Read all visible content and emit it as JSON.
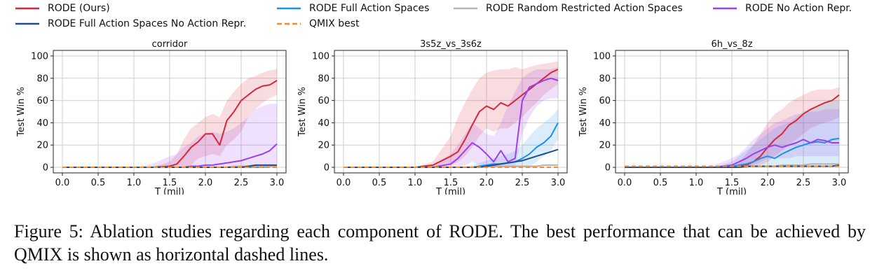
{
  "legend": [
    {
      "label": "RODE (Ours)",
      "color": "#d62739",
      "dash": false
    },
    {
      "label": "RODE Full Action Spaces",
      "color": "#1e90e8",
      "dash": false
    },
    {
      "label": "RODE Random Restricted Action Spaces",
      "color": "#b4b4b4",
      "dash": false
    },
    {
      "label": "RODE No Action Repr.",
      "color": "#9b3ff0",
      "dash": false
    },
    {
      "label": "RODE Full Action Spaces No Action Repr.",
      "color": "#1a4f91",
      "dash": false
    },
    {
      "label": "QMIX best",
      "color": "#ff8c1a",
      "dash": true
    }
  ],
  "chart_data": [
    {
      "type": "line",
      "title": "corridor",
      "xlabel": "T (mil)",
      "ylabel": "Test Win %",
      "xlim": [
        0,
        3.0
      ],
      "ylim": [
        -5,
        105
      ],
      "xticks": [
        "0.0",
        "0.5",
        "1.0",
        "1.5",
        "2.0",
        "2.5",
        "3.0"
      ],
      "yticks": [
        "0",
        "20",
        "40",
        "60",
        "80",
        "100"
      ],
      "grid": true,
      "x": [
        0,
        0.25,
        0.5,
        0.75,
        1.0,
        1.25,
        1.5,
        1.6,
        1.7,
        1.8,
        1.9,
        2.0,
        2.1,
        2.2,
        2.3,
        2.4,
        2.5,
        2.6,
        2.7,
        2.8,
        2.9,
        3.0
      ],
      "series": [
        {
          "name": "RODE (Ours)",
          "values": [
            0,
            0,
            0,
            0,
            0,
            0,
            1,
            3,
            10,
            18,
            23,
            30,
            30,
            20,
            42,
            50,
            60,
            65,
            70,
            73,
            74,
            78
          ],
          "lower": [
            0,
            0,
            0,
            0,
            0,
            0,
            0,
            0,
            0,
            2,
            8,
            10,
            12,
            10,
            20,
            25,
            32,
            45,
            52,
            58,
            62,
            65
          ],
          "upper": [
            0,
            0,
            0,
            0,
            0,
            0,
            5,
            12,
            25,
            35,
            40,
            45,
            48,
            45,
            60,
            68,
            75,
            80,
            82,
            85,
            87,
            88
          ]
        },
        {
          "name": "RODE Full Action Spaces",
          "values": [
            0,
            0,
            0,
            0,
            0,
            0,
            0,
            0,
            0,
            0,
            0,
            0,
            0,
            0,
            0,
            0,
            0,
            0,
            0,
            0,
            1,
            1
          ],
          "lower": null,
          "upper": null
        },
        {
          "name": "RODE Random Restricted Action Spaces",
          "values": [
            0,
            0,
            0,
            0,
            0,
            0,
            0,
            0,
            0,
            0,
            0,
            0,
            0,
            0,
            0,
            1,
            1,
            1,
            1,
            1,
            1,
            1
          ],
          "lower": null,
          "upper": null
        },
        {
          "name": "RODE No Action Repr.",
          "values": [
            0,
            0,
            0,
            0,
            0,
            0,
            0,
            0,
            0,
            1,
            1,
            2,
            2,
            3,
            4,
            5,
            6,
            8,
            10,
            12,
            15,
            21
          ],
          "lower": [
            0,
            0,
            0,
            0,
            0,
            0,
            0,
            0,
            0,
            0,
            0,
            0,
            0,
            0,
            0,
            0,
            0,
            0,
            0,
            0,
            0,
            0
          ],
          "upper": [
            0,
            0,
            0,
            0,
            0,
            3,
            10,
            12,
            18,
            22,
            28,
            30,
            32,
            30,
            32,
            35,
            40,
            45,
            52,
            55,
            57,
            57
          ]
        },
        {
          "name": "RODE Full Action Spaces No Action Repr.",
          "values": [
            0,
            0,
            0,
            0,
            0,
            0,
            0,
            0,
            0,
            0,
            0,
            0,
            0,
            0,
            0,
            0,
            0,
            1,
            2,
            2,
            2,
            2
          ],
          "lower": null,
          "upper": null
        },
        {
          "name": "QMIX best",
          "values": [
            0,
            0,
            0,
            0,
            0,
            0,
            0,
            0,
            0,
            0,
            0,
            0,
            0,
            0,
            0,
            0,
            0,
            0,
            0,
            0,
            0,
            0
          ],
          "lower": null,
          "upper": null
        }
      ]
    },
    {
      "type": "line",
      "title": "3s5z_vs_3s6z",
      "xlabel": "T (mil)",
      "ylabel": "Test Win %",
      "xlim": [
        0,
        3.0
      ],
      "ylim": [
        -5,
        105
      ],
      "xticks": [
        "0.0",
        "0.5",
        "1.0",
        "1.5",
        "2.0",
        "2.5",
        "3.0"
      ],
      "yticks": [
        "0",
        "20",
        "40",
        "60",
        "80",
        "100"
      ],
      "grid": true,
      "x": [
        0,
        0.25,
        0.5,
        0.75,
        1.0,
        1.25,
        1.5,
        1.6,
        1.7,
        1.8,
        1.9,
        2.0,
        2.1,
        2.2,
        2.3,
        2.4,
        2.5,
        2.6,
        2.7,
        2.8,
        2.9,
        3.0
      ],
      "series": [
        {
          "name": "RODE (Ours)",
          "values": [
            0,
            0,
            0,
            0,
            0,
            2,
            10,
            14,
            25,
            38,
            50,
            55,
            52,
            58,
            55,
            60,
            65,
            70,
            75,
            80,
            85,
            88
          ],
          "lower": [
            0,
            0,
            0,
            0,
            0,
            0,
            2,
            5,
            10,
            18,
            28,
            35,
            32,
            35,
            35,
            40,
            45,
            52,
            58,
            65,
            70,
            75
          ],
          "upper": [
            0,
            0,
            0,
            0,
            0,
            5,
            28,
            45,
            58,
            70,
            80,
            85,
            87,
            88,
            88,
            90,
            88,
            90,
            92,
            93,
            94,
            95
          ]
        },
        {
          "name": "RODE Full Action Spaces",
          "values": [
            0,
            0,
            0,
            0,
            0,
            0,
            0,
            0,
            0,
            0,
            1,
            2,
            3,
            3,
            4,
            5,
            8,
            12,
            18,
            22,
            28,
            40
          ],
          "lower": [
            0,
            0,
            0,
            0,
            0,
            0,
            0,
            0,
            0,
            0,
            0,
            0,
            0,
            0,
            0,
            0,
            0,
            0,
            5,
            10,
            15,
            25
          ],
          "upper": [
            0,
            0,
            0,
            0,
            0,
            0,
            0,
            0,
            1,
            2,
            4,
            6,
            8,
            10,
            12,
            15,
            20,
            28,
            35,
            40,
            45,
            52
          ]
        },
        {
          "name": "RODE Random Restricted Action Spaces",
          "values": [
            0,
            0,
            0,
            0,
            0,
            0,
            0,
            0,
            0,
            0,
            0,
            1,
            1,
            1,
            1,
            1,
            1,
            1,
            1,
            2,
            2,
            2
          ],
          "lower": null,
          "upper": null
        },
        {
          "name": "RODE No Action Repr.",
          "values": [
            0,
            0,
            0,
            0,
            0,
            0,
            3,
            8,
            15,
            22,
            18,
            12,
            5,
            15,
            5,
            8,
            60,
            72,
            75,
            78,
            80,
            78
          ],
          "lower": [
            0,
            0,
            0,
            0,
            0,
            0,
            0,
            0,
            2,
            5,
            2,
            0,
            0,
            0,
            0,
            0,
            30,
            45,
            55,
            60,
            62,
            62
          ],
          "upper": [
            0,
            0,
            0,
            0,
            0,
            2,
            12,
            20,
            30,
            40,
            35,
            30,
            28,
            40,
            55,
            68,
            80,
            85,
            88,
            88,
            88,
            90
          ]
        },
        {
          "name": "RODE Full Action Spaces No Action Repr.",
          "values": [
            0,
            0,
            0,
            0,
            0,
            0,
            0,
            0,
            0,
            0,
            0,
            1,
            2,
            3,
            4,
            5,
            6,
            8,
            10,
            12,
            14,
            16
          ],
          "lower": null,
          "upper": null
        },
        {
          "name": "QMIX best",
          "values": [
            0,
            0,
            0,
            0,
            0,
            0,
            0,
            0,
            0,
            0,
            0,
            0,
            0,
            0,
            0,
            0,
            0,
            0,
            0,
            0,
            0,
            0
          ],
          "lower": null,
          "upper": null
        }
      ]
    },
    {
      "type": "line",
      "title": "6h_vs_8z",
      "xlabel": "T (mil)",
      "ylabel": "Test Win %",
      "xlim": [
        0,
        3.0
      ],
      "ylim": [
        -5,
        105
      ],
      "xticks": [
        "0.0",
        "0.5",
        "1.0",
        "1.5",
        "2.0",
        "2.5",
        "3.0"
      ],
      "yticks": [
        "0",
        "20",
        "40",
        "60",
        "80",
        "100"
      ],
      "grid": true,
      "x": [
        0,
        0.25,
        0.5,
        0.75,
        1.0,
        1.25,
        1.5,
        1.6,
        1.7,
        1.8,
        1.9,
        2.0,
        2.1,
        2.2,
        2.3,
        2.4,
        2.5,
        2.6,
        2.7,
        2.8,
        2.9,
        3.0
      ],
      "series": [
        {
          "name": "RODE (Ours)",
          "values": [
            0,
            0,
            0,
            0,
            0,
            0,
            0,
            1,
            2,
            5,
            10,
            18,
            25,
            30,
            38,
            42,
            48,
            52,
            55,
            58,
            60,
            65
          ],
          "lower": [
            0,
            0,
            0,
            0,
            0,
            0,
            0,
            0,
            0,
            0,
            2,
            5,
            10,
            15,
            20,
            25,
            30,
            35,
            38,
            40,
            42,
            45
          ],
          "upper": [
            0,
            0,
            0,
            0,
            0,
            0,
            2,
            5,
            12,
            20,
            30,
            40,
            48,
            52,
            58,
            62,
            65,
            68,
            70,
            70,
            70,
            72
          ]
        },
        {
          "name": "RODE Full Action Spaces",
          "values": [
            0,
            0,
            0,
            0,
            0,
            0,
            1,
            2,
            3,
            5,
            8,
            10,
            8,
            12,
            15,
            18,
            20,
            22,
            23,
            22,
            25,
            26
          ],
          "lower": [
            0,
            0,
            0,
            0,
            0,
            0,
            0,
            0,
            0,
            0,
            0,
            0,
            0,
            0,
            0,
            0,
            0,
            0,
            0,
            0,
            0,
            0
          ],
          "upper": [
            0,
            0,
            0,
            0,
            0,
            0,
            5,
            10,
            15,
            20,
            25,
            30,
            35,
            38,
            40,
            45,
            50,
            52,
            55,
            58,
            60,
            60
          ]
        },
        {
          "name": "RODE Random Restricted Action Spaces",
          "values": [
            0,
            0,
            0,
            0,
            0,
            0,
            0,
            0,
            0,
            1,
            1,
            1,
            1,
            2,
            2,
            2,
            2,
            3,
            3,
            3,
            3,
            3
          ],
          "lower": null,
          "upper": null
        },
        {
          "name": "RODE No Action Repr.",
          "values": [
            0,
            0,
            0,
            0,
            0,
            0,
            2,
            5,
            8,
            12,
            15,
            18,
            20,
            18,
            20,
            22,
            25,
            22,
            25,
            24,
            22,
            22
          ],
          "lower": [
            0,
            0,
            0,
            0,
            0,
            0,
            0,
            0,
            0,
            2,
            5,
            8,
            8,
            8,
            8,
            10,
            10,
            10,
            10,
            10,
            10,
            10
          ],
          "upper": [
            0,
            0,
            0,
            0,
            0,
            2,
            8,
            12,
            18,
            25,
            30,
            35,
            40,
            42,
            45,
            48,
            48,
            50,
            50,
            52,
            52,
            52
          ]
        },
        {
          "name": "RODE Full Action Spaces No Action Repr.",
          "values": [
            0,
            0,
            0,
            0,
            0,
            0,
            0,
            0,
            1,
            1,
            1,
            1,
            1,
            1,
            1,
            1,
            1,
            1,
            1,
            1,
            1,
            2
          ],
          "lower": null,
          "upper": null
        },
        {
          "name": "QMIX best",
          "values": [
            1,
            1,
            1,
            1,
            1,
            1,
            1,
            1,
            1,
            1,
            1,
            1,
            1,
            1,
            1,
            1,
            1,
            1,
            1,
            1,
            1,
            1
          ],
          "lower": null,
          "upper": null
        }
      ]
    }
  ],
  "caption": "Figure 5: Ablation studies regarding each component of RODE. The best performance that can be achieved by QMIX is shown as horizontal dashed lines."
}
